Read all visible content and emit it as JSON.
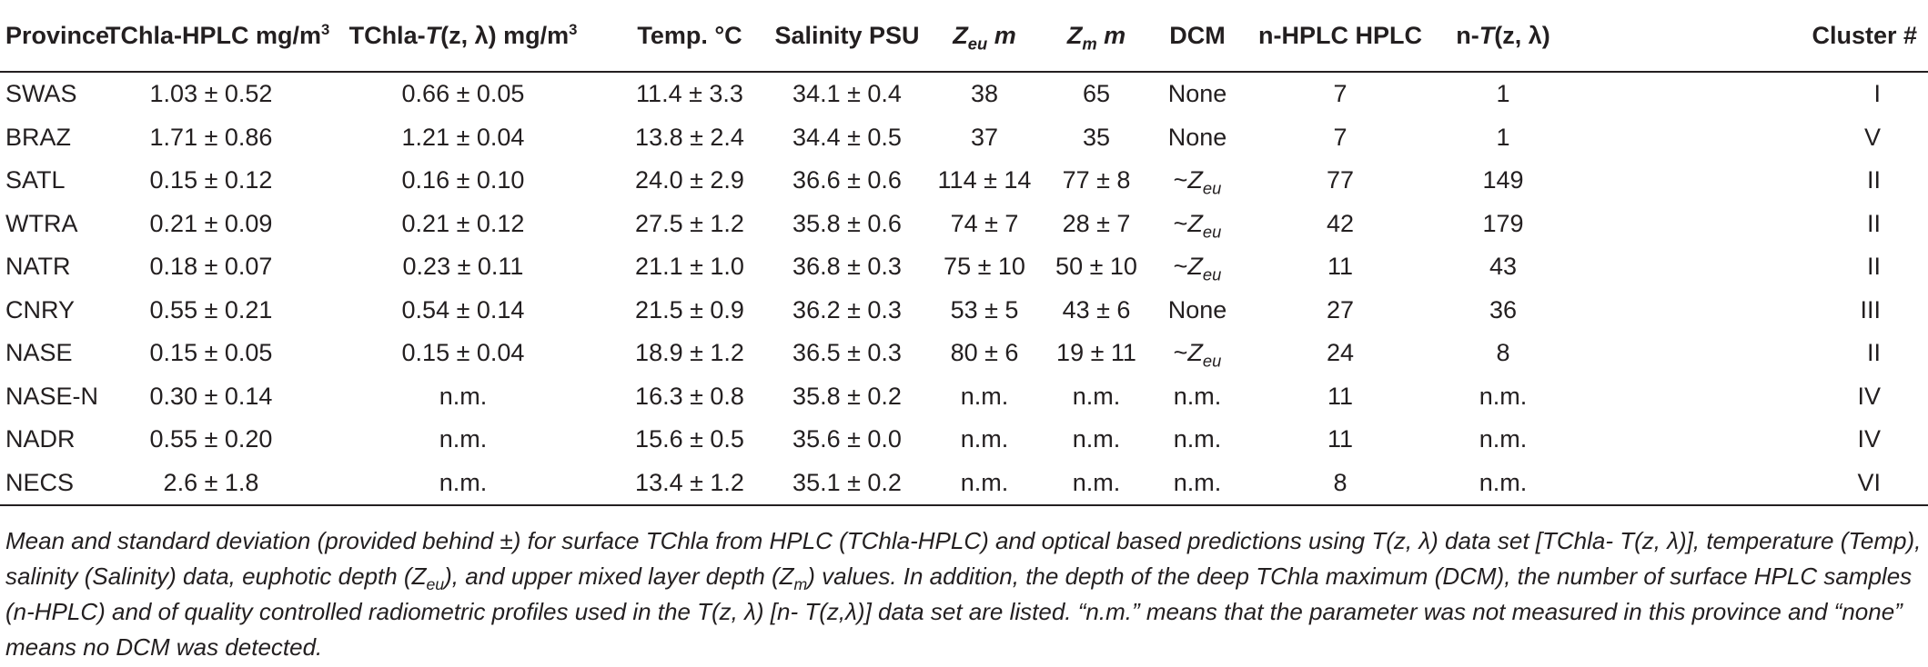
{
  "headers": {
    "province": "Province",
    "tchla_hplc": "TChla-HPLC mg/m",
    "tchla_hplc_sup": "3",
    "tchla_t_pre": "TChla-",
    "tchla_t_T": "T",
    "tchla_t_args": "(z, λ) mg/m",
    "tchla_t_sup": "3",
    "temp": "Temp. °C",
    "salinity": "Salinity PSU",
    "zeu_Z": "Z",
    "zeu_sub": "eu",
    "zeu_unit": " m",
    "zm_Z": "Z",
    "zm_sub": "m",
    "zm_unit": " m",
    "dcm": "DCM",
    "n_hplc": "n-HPLC HPLC",
    "n_t_pre": "n-",
    "n_t_T": "T",
    "n_t_args": "(z, λ)",
    "cluster": "Cluster #"
  },
  "rows": [
    {
      "province": "SWAS",
      "tchla_hplc": "1.03 ± 0.52",
      "tchla_t": "0.66 ± 0.05",
      "temp": "11.4 ± 3.3",
      "salinity": "34.1 ± 0.4",
      "zeu": "38",
      "zm": "65",
      "dcm": "None",
      "dcm_sub": "",
      "n_hplc": "7",
      "n_t": "1",
      "cluster": "I"
    },
    {
      "province": "BRAZ",
      "tchla_hplc": "1.71 ± 0.86",
      "tchla_t": "1.21 ± 0.04",
      "temp": "13.8 ± 2.4",
      "salinity": "34.4 ± 0.5",
      "zeu": "37",
      "zm": "35",
      "dcm": "None",
      "dcm_sub": "",
      "n_hplc": "7",
      "n_t": "1",
      "cluster": "V"
    },
    {
      "province": "SATL",
      "tchla_hplc": "0.15 ± 0.12",
      "tchla_t": "0.16 ± 0.10",
      "temp": "24.0 ± 2.9",
      "salinity": "36.6 ± 0.6",
      "zeu": "114 ± 14",
      "zm": "77 ± 8",
      "dcm": "~Z",
      "dcm_sub": "eu",
      "n_hplc": "77",
      "n_t": "149",
      "cluster": "II"
    },
    {
      "province": "WTRA",
      "tchla_hplc": "0.21 ± 0.09",
      "tchla_t": "0.21 ± 0.12",
      "temp": "27.5 ± 1.2",
      "salinity": "35.8 ± 0.6",
      "zeu": "74 ± 7",
      "zm": "28 ± 7",
      "dcm": "~Z",
      "dcm_sub": "eu",
      "n_hplc": "42",
      "n_t": "179",
      "cluster": "II"
    },
    {
      "province": "NATR",
      "tchla_hplc": "0.18 ± 0.07",
      "tchla_t": "0.23 ± 0.11",
      "temp": "21.1 ± 1.0",
      "salinity": "36.8 ± 0.3",
      "zeu": "75 ± 10",
      "zm": "50 ± 10",
      "dcm": "~Z",
      "dcm_sub": "eu",
      "n_hplc": "11",
      "n_t": "43",
      "cluster": "II"
    },
    {
      "province": "CNRY",
      "tchla_hplc": "0.55 ± 0.21",
      "tchla_t": "0.54 ± 0.14",
      "temp": "21.5 ± 0.9",
      "salinity": "36.2 ± 0.3",
      "zeu": "53 ± 5",
      "zm": "43 ± 6",
      "dcm": "None",
      "dcm_sub": "",
      "n_hplc": "27",
      "n_t": "36",
      "cluster": "III"
    },
    {
      "province": "NASE",
      "tchla_hplc": "0.15 ± 0.05",
      "tchla_t": "0.15 ± 0.04",
      "temp": "18.9 ± 1.2",
      "salinity": "36.5 ± 0.3",
      "zeu": "80 ± 6",
      "zm": "19 ± 11",
      "dcm": "~Z",
      "dcm_sub": "eu",
      "n_hplc": "24",
      "n_t": "8",
      "cluster": "II"
    },
    {
      "province": "NASE-N",
      "tchla_hplc": "0.30 ± 0.14",
      "tchla_t": "n.m.",
      "temp": "16.3 ± 0.8",
      "salinity": "35.8 ± 0.2",
      "zeu": "n.m.",
      "zm": "n.m.",
      "dcm": "n.m.",
      "dcm_sub": "",
      "n_hplc": "11",
      "n_t": "n.m.",
      "cluster": "IV"
    },
    {
      "province": "NADR",
      "tchla_hplc": "0.55 ± 0.20",
      "tchla_t": "n.m.",
      "temp": "15.6 ± 0.5",
      "salinity": "35.6 ± 0.0",
      "zeu": "n.m.",
      "zm": "n.m.",
      "dcm": "n.m.",
      "dcm_sub": "",
      "n_hplc": "11",
      "n_t": "n.m.",
      "cluster": "IV"
    },
    {
      "province": "NECS",
      "tchla_hplc": "2.6 ± 1.8",
      "tchla_t": "n.m.",
      "temp": "13.4 ± 1.2",
      "salinity": "35.1 ± 0.2",
      "zeu": "n.m.",
      "zm": "n.m.",
      "dcm": "n.m.",
      "dcm_sub": "",
      "n_hplc": "8",
      "n_t": "n.m.",
      "cluster": "VI"
    }
  ],
  "caption": {
    "s1": "Mean and standard deviation (provided behind ±) for surface TChla from HPLC (TChla-HPLC) and optical based predictions using T(z, λ) data set [TChla- T(z, λ)], temperature (Temp), salinity (Salinity) data, euphotic depth (Z",
    "s1_sub": "eu",
    "s2": "), and upper mixed layer depth (Z",
    "s2_sub": "m",
    "s3": ") values. In addition, the depth of the deep TChla maximum (DCM), the number of surface HPLC samples (n-HPLC) and of quality controlled radiometric profiles used in the T(z, λ) [n- T(z,λ)] data set are listed. “n.m.” means that the parameter was not measured in this province and “none” means no DCM was detected."
  }
}
